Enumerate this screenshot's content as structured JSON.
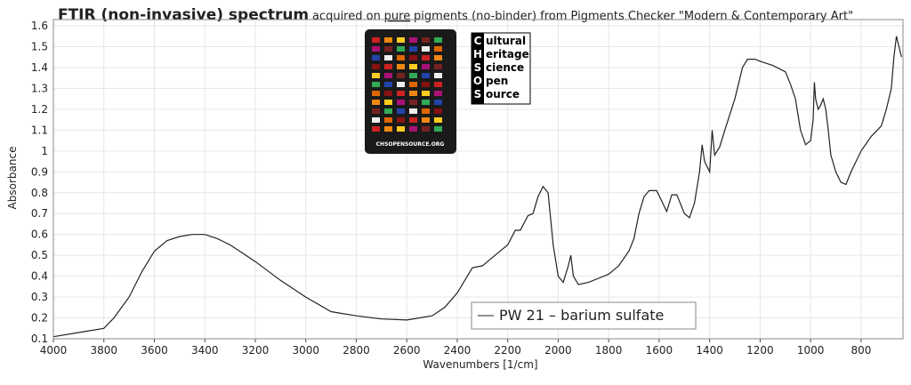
{
  "chart_data": {
    "type": "line",
    "title_parts": [
      "FTIR (non-invasive) spectrum",
      "acquired on",
      "pure",
      "pigments (no-binder) from Pigments Checker \"Modern & Contemporary Art\""
    ],
    "xlabel": "Wavenumbers [1/cm]",
    "ylabel": "Absorbance",
    "logo_lines": [
      "Cultural",
      "Heritage",
      "Science",
      "Open",
      "Source"
    ],
    "card_text": "CHSOPENSOURCE.ORG",
    "x": [
      4000,
      3900,
      3800,
      3760,
      3700,
      3650,
      3600,
      3550,
      3500,
      3450,
      3400,
      3350,
      3300,
      3250,
      3200,
      3100,
      3000,
      2900,
      2800,
      2700,
      2600,
      2500,
      2450,
      2400,
      2360,
      2340,
      2300,
      2250,
      2200,
      2170,
      2150,
      2120,
      2100,
      2080,
      2060,
      2040,
      2020,
      2000,
      1980,
      1960,
      1950,
      1940,
      1920,
      1880,
      1840,
      1800,
      1760,
      1720,
      1700,
      1680,
      1660,
      1640,
      1610,
      1590,
      1570,
      1550,
      1530,
      1500,
      1480,
      1460,
      1440,
      1430,
      1420,
      1400,
      1390,
      1380,
      1360,
      1340,
      1300,
      1270,
      1250,
      1220,
      1200,
      1150,
      1100,
      1080,
      1060,
      1040,
      1020,
      1000,
      990,
      985,
      980,
      970,
      960,
      950,
      940,
      930,
      920,
      900,
      880,
      860,
      840,
      800,
      760,
      720,
      700,
      680,
      670,
      660,
      650,
      640
    ],
    "series": [
      {
        "name": "PW 21 – barium sulfate",
        "color": "#222222",
        "values": [
          0.11,
          0.13,
          0.15,
          0.2,
          0.3,
          0.42,
          0.52,
          0.57,
          0.59,
          0.6,
          0.6,
          0.58,
          0.55,
          0.51,
          0.47,
          0.38,
          0.3,
          0.23,
          0.21,
          0.195,
          0.19,
          0.21,
          0.25,
          0.32,
          0.4,
          0.44,
          0.45,
          0.5,
          0.55,
          0.62,
          0.62,
          0.69,
          0.7,
          0.78,
          0.83,
          0.8,
          0.55,
          0.4,
          0.37,
          0.45,
          0.5,
          0.4,
          0.36,
          0.37,
          0.39,
          0.41,
          0.45,
          0.52,
          0.58,
          0.7,
          0.78,
          0.81,
          0.81,
          0.76,
          0.71,
          0.79,
          0.79,
          0.7,
          0.68,
          0.75,
          0.9,
          1.03,
          0.95,
          0.9,
          1.1,
          0.98,
          1.02,
          1.1,
          1.25,
          1.4,
          1.44,
          1.44,
          1.43,
          1.41,
          1.38,
          1.32,
          1.25,
          1.1,
          1.03,
          1.05,
          1.15,
          1.33,
          1.25,
          1.2,
          1.22,
          1.25,
          1.2,
          1.1,
          0.98,
          0.9,
          0.85,
          0.84,
          0.9,
          1.0,
          1.07,
          1.12,
          1.2,
          1.3,
          1.45,
          1.55,
          1.5,
          1.45
        ]
      }
    ],
    "xlim": [
      4000,
      634
    ],
    "ylim": [
      0.1,
      1.63
    ],
    "xticks": [
      4000,
      3800,
      3600,
      3400,
      3200,
      3000,
      2800,
      2600,
      2400,
      2200,
      2000,
      1800,
      1600,
      1400,
      1200,
      1000,
      800
    ],
    "yticks": [
      0.1,
      0.2,
      0.3,
      0.4,
      0.5,
      0.6,
      0.7,
      0.8,
      0.9,
      1,
      1.1,
      1.2,
      1.3,
      1.4,
      1.5,
      1.6
    ],
    "grid": true
  }
}
